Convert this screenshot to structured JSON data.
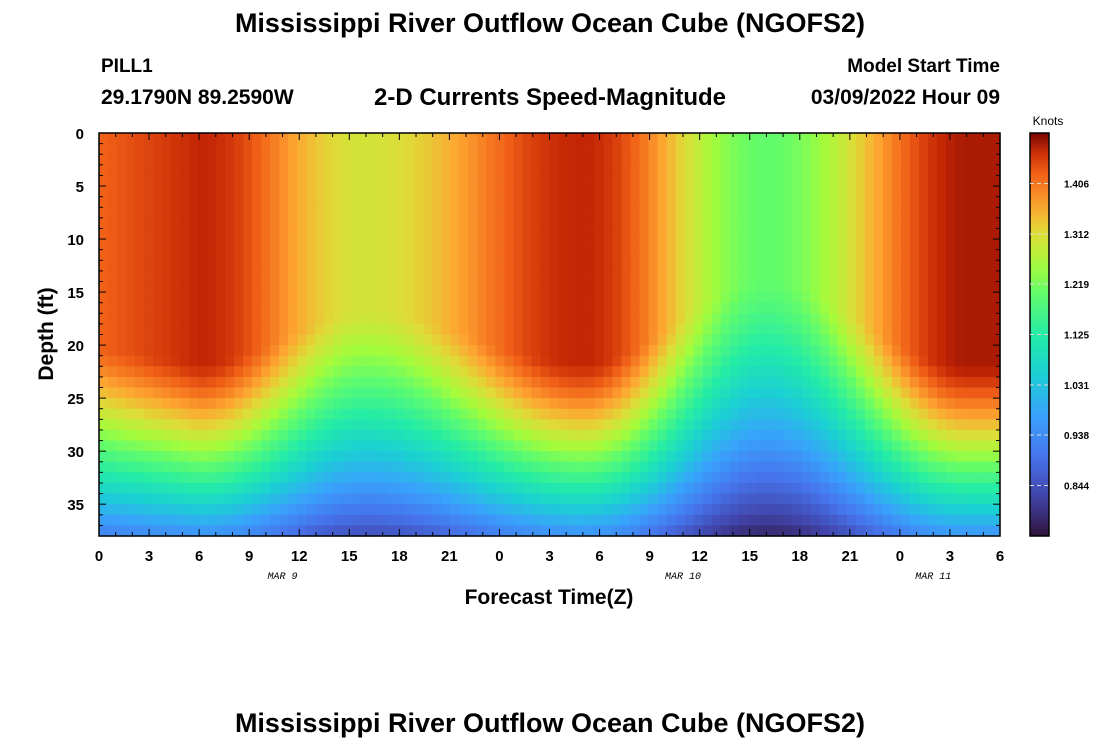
{
  "header": {
    "title": "Mississippi River Outflow Ocean Cube (NGOFS2)",
    "station": "PILL1",
    "coords": "29.1790N  89.2590W",
    "plot_title": "2-D Currents Speed-Magnitude",
    "model_start_label": "Model Start Time",
    "model_start_value": "03/09/2022 Hour 09"
  },
  "footer": {
    "title": "Mississippi River Outflow Ocean Cube (NGOFS2)"
  },
  "chart_data": {
    "type": "heatmap",
    "xlabel": "Forecast Time(Z)",
    "ylabel": "Depth (ft)",
    "x_range": [
      0,
      54
    ],
    "x_tick_labels": [
      "0",
      "3",
      "6",
      "9",
      "12",
      "15",
      "18",
      "21",
      "0",
      "3",
      "6",
      "9",
      "12",
      "15",
      "18",
      "21",
      "0",
      "3",
      "6"
    ],
    "date_labels": [
      {
        "label": "MAR 9",
        "x": 11
      },
      {
        "label": "MAR 10",
        "x": 35
      },
      {
        "label": "MAR 11",
        "x": 50
      }
    ],
    "y_range": [
      0,
      38
    ],
    "y_ticks": [
      0,
      5,
      10,
      15,
      20,
      25,
      30,
      35
    ],
    "colorbar": {
      "unit": "Knots",
      "range": [
        0.75,
        1.5
      ],
      "ticks": [
        1.406,
        1.312,
        1.219,
        1.125,
        1.031,
        0.938,
        0.844
      ]
    },
    "surface_speed_peaks": [
      {
        "x": 6,
        "value": 1.47
      },
      {
        "x": 29,
        "value": 1.47
      },
      {
        "x": 52,
        "value": 1.48
      }
    ],
    "surface_speed_minima": [
      {
        "x": 16,
        "value": 1.3
      },
      {
        "x": 40,
        "value": 1.2
      }
    ],
    "bottom_speed_range": [
      0.78,
      0.95
    ],
    "grid": false,
    "legend": "colorbar-right"
  }
}
